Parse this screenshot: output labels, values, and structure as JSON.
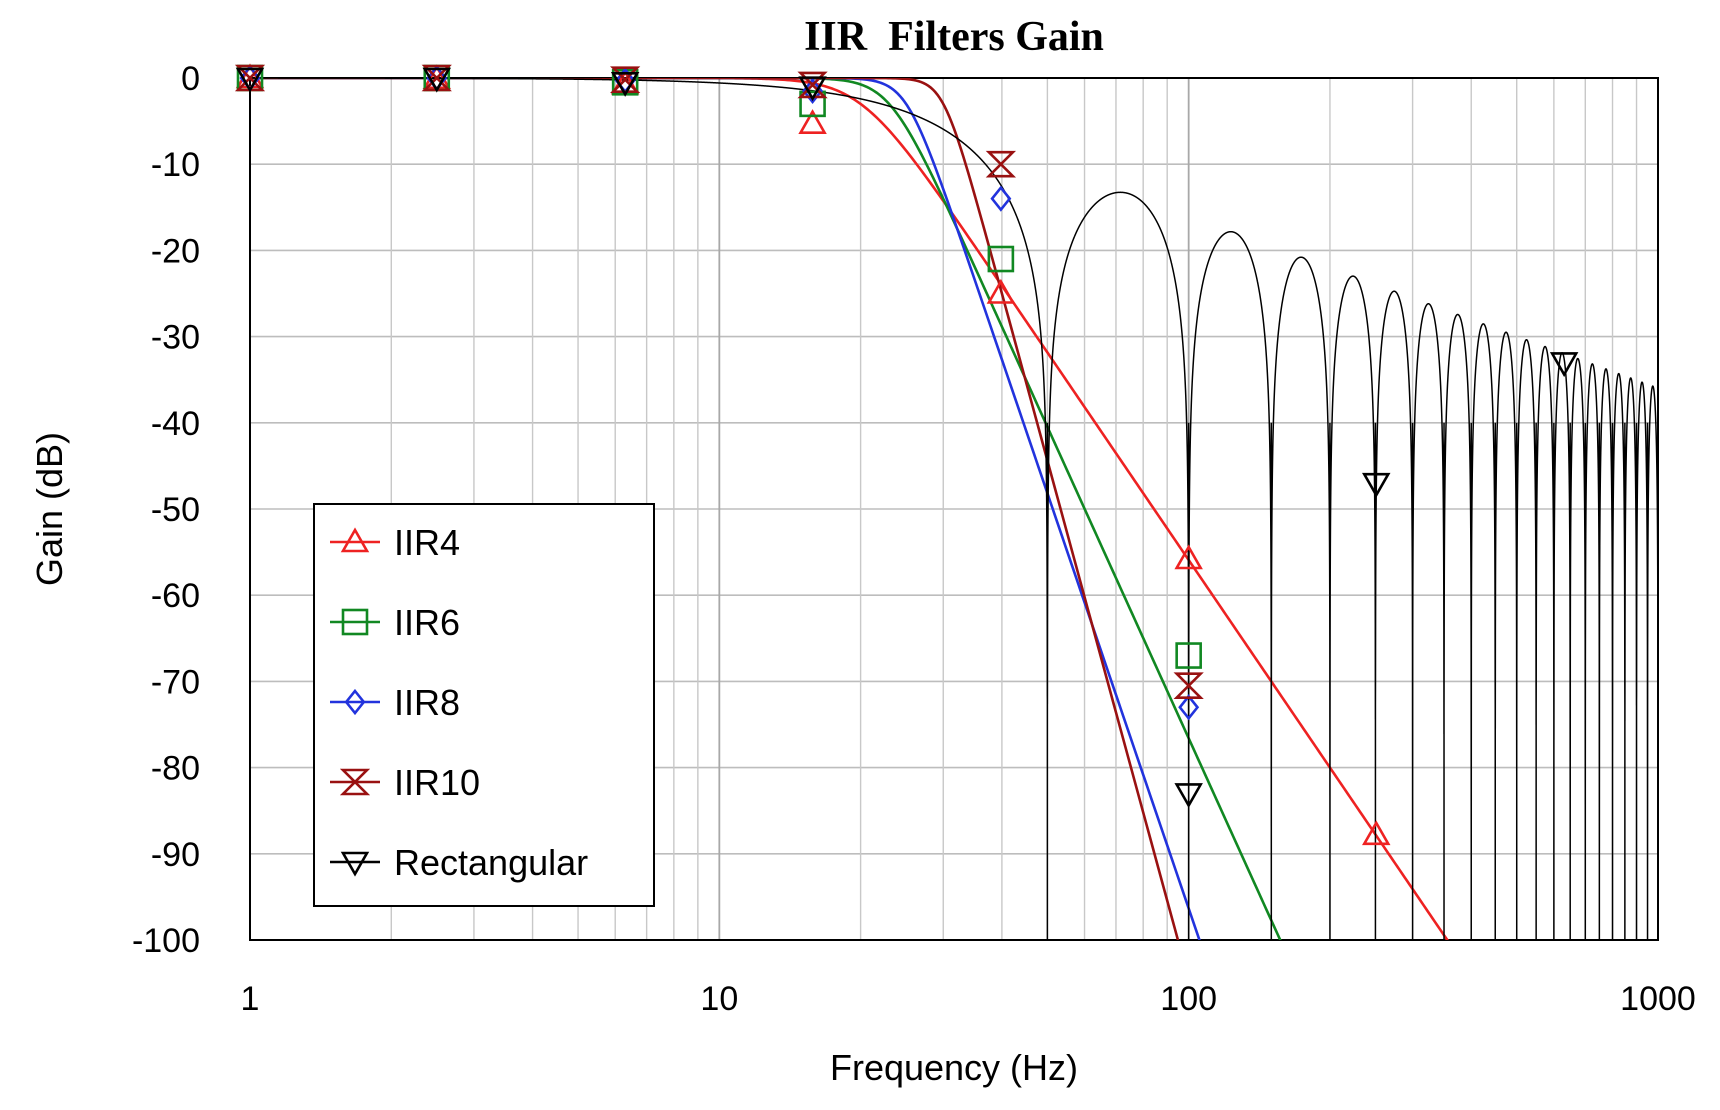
{
  "chart_data": {
    "type": "line",
    "title": "IIR  Filters Gain",
    "xlabel": "Frequency (Hz)",
    "ylabel": "Gain (dB)",
    "xscale": "log",
    "xlim": [
      1,
      1000
    ],
    "ylim": [
      -100,
      0
    ],
    "xticks": [
      1,
      10,
      100,
      1000
    ],
    "xtick_labels": [
      "1",
      "10",
      "100",
      "1000"
    ],
    "yticks": [
      0,
      -10,
      -20,
      -30,
      -40,
      -50,
      -60,
      -70,
      -80,
      -90,
      -100
    ],
    "ytick_labels": [
      "0",
      "-10",
      "-20",
      "-30",
      "-40",
      "-50",
      "-60",
      "-70",
      "-80",
      "-90",
      "-100"
    ],
    "grid": true,
    "legend_position": "lower-left",
    "series": [
      {
        "name": "IIR4",
        "color": "#ee2222",
        "marker": "triangle-up",
        "order": 4,
        "cutoff_hz": 20,
        "marker_points": [
          [
            1,
            0
          ],
          [
            2.5,
            -0.1
          ],
          [
            6.3,
            -0.7
          ],
          [
            15.8,
            -5.3
          ],
          [
            39.8,
            -25
          ],
          [
            100,
            -55.8
          ],
          [
            251,
            -87.8
          ]
        ]
      },
      {
        "name": "IIR6",
        "color": "#118822",
        "marker": "square",
        "order": 6,
        "cutoff_hz": 23,
        "marker_points": [
          [
            1,
            0
          ],
          [
            2.5,
            0
          ],
          [
            6.3,
            -0.5
          ],
          [
            15.8,
            -3
          ],
          [
            39.8,
            -21
          ],
          [
            100,
            -67
          ]
        ]
      },
      {
        "name": "IIR8",
        "color": "#2233dd",
        "marker": "diamond",
        "order": 8,
        "cutoff_hz": 25,
        "marker_points": [
          [
            1,
            0
          ],
          [
            2.5,
            0
          ],
          [
            6.3,
            -0.3
          ],
          [
            15.8,
            -1.5
          ],
          [
            39.8,
            -14
          ],
          [
            100,
            -73
          ]
        ]
      },
      {
        "name": "IIR10",
        "color": "#991111",
        "marker": "hourglass",
        "order": 10,
        "cutoff_hz": 30,
        "marker_points": [
          [
            1,
            0
          ],
          [
            2.5,
            0
          ],
          [
            6.3,
            -0.2
          ],
          [
            15.8,
            -0.8
          ],
          [
            39.8,
            -10
          ],
          [
            100,
            -70.5
          ]
        ]
      },
      {
        "name": "Rectangular",
        "color": "#000000",
        "marker": "triangle-down",
        "window_s": 0.02,
        "marker_points": [
          [
            1,
            0
          ],
          [
            2.5,
            0
          ],
          [
            6.3,
            -0.5
          ],
          [
            15.8,
            -1
          ],
          [
            100,
            -83
          ],
          [
            251,
            -47
          ],
          [
            631,
            -33
          ]
        ]
      }
    ]
  }
}
